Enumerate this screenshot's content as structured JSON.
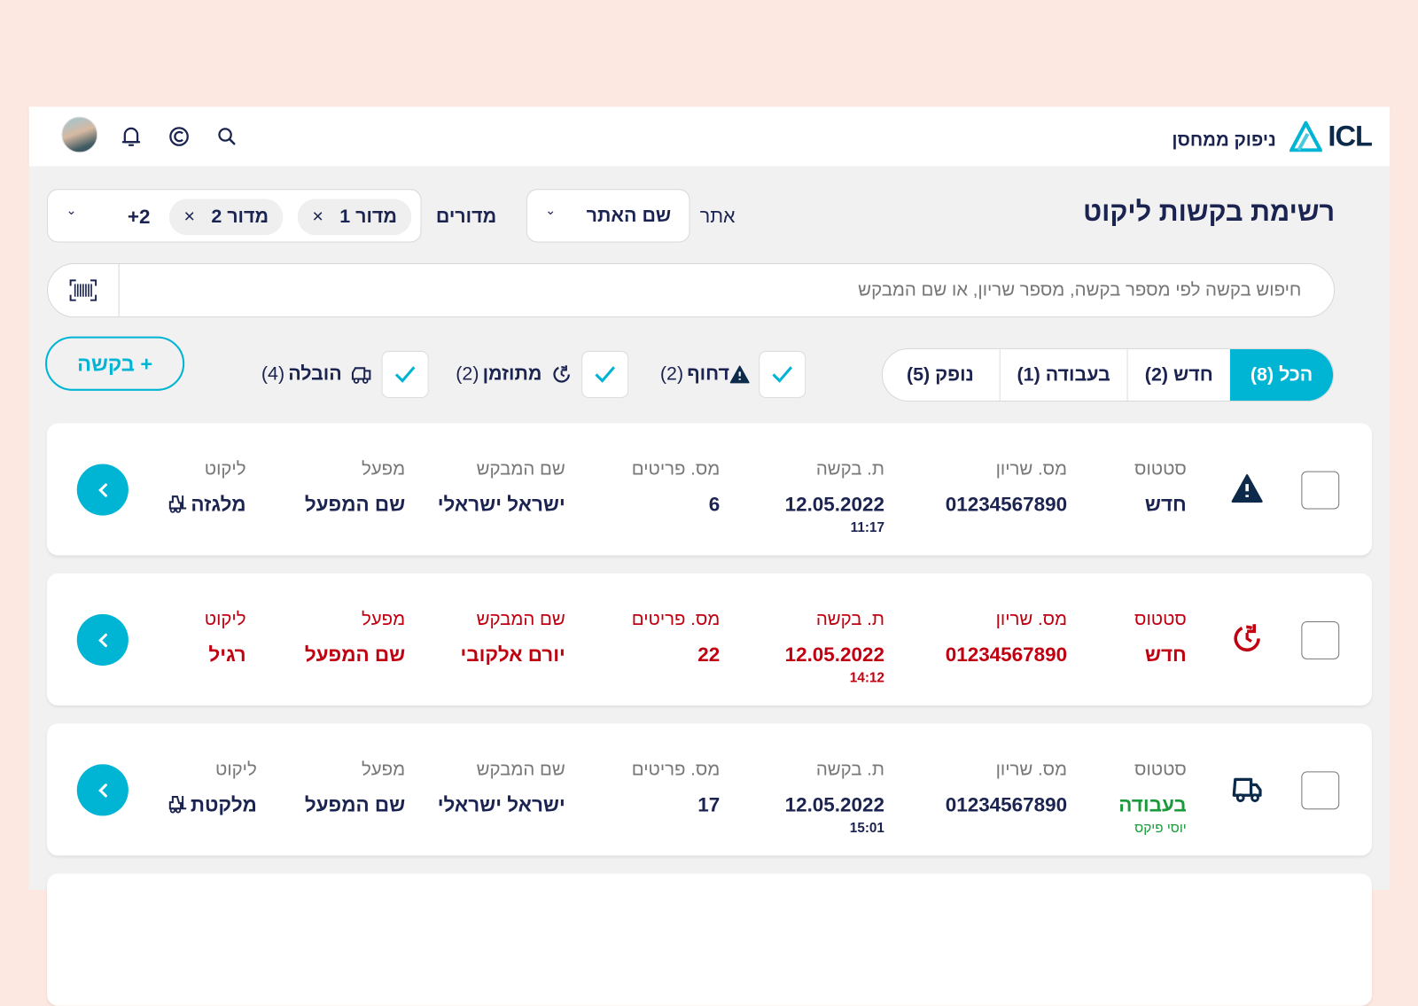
{
  "header": {
    "logo_text": "ICL",
    "app_title": "ניפוק ממחסן"
  },
  "page": {
    "title": "רשימת בקשות ליקוט"
  },
  "filters": {
    "site_label": "אתר",
    "site_value": "שם האתר",
    "regions_label": "מדורים",
    "region_chips": [
      "מדור 1",
      "מדור 2"
    ],
    "regions_more": "+2",
    "chip_remove": "×",
    "search_placeholder": "חיפוש בקשה לפי מספר בקשה, מספר שריון, או שם המבקש"
  },
  "tabs": [
    {
      "label": "הכל (8)",
      "active": true
    },
    {
      "label": "חדש (2)"
    },
    {
      "label": "בעבודה (1)"
    },
    {
      "label": "נופק (5)"
    }
  ],
  "type_filters": [
    {
      "label": "דחוף",
      "count": "(2)",
      "icon": "warning-icon",
      "checked": true
    },
    {
      "label": "מתוזמן",
      "count": "(2)",
      "icon": "scheduled-icon",
      "checked": true
    },
    {
      "label": "הובלה",
      "count": "(4)",
      "icon": "truck-icon",
      "checked": true
    }
  ],
  "add_button": "+ בקשה",
  "columns": {
    "status": "סטטוס",
    "serial": "מס. שריון",
    "date": "ת. בקשה",
    "items": "מס. פריטים",
    "requester": "שם המבקש",
    "factory": "מפעל",
    "picking": "ליקוט"
  },
  "rows": [
    {
      "icon": "warning-icon",
      "status": "חדש",
      "status_sub": "",
      "serial": "01234567890",
      "date": "12.05.2022",
      "time": "11:17",
      "items": "6",
      "requester": "ישראל ישראלי",
      "factory": "שם המפעל",
      "picking": "מלגזה",
      "picking_icon": "forklift-icon",
      "tone": "normal"
    },
    {
      "icon": "scheduled-icon",
      "status": "חדש",
      "status_sub": "",
      "serial": "01234567890",
      "date": "12.05.2022",
      "time": "14:12",
      "items": "22",
      "requester": "יורם אלקובי",
      "factory": "שם המפעל",
      "picking": "רגיל",
      "picking_icon": "",
      "tone": "red"
    },
    {
      "icon": "truck-icon",
      "status": "בעבודה",
      "status_sub": "יוסי פיקס",
      "serial": "01234567890",
      "date": "12.05.2022",
      "time": "15:01",
      "items": "17",
      "requester": "ישראל ישראלי",
      "factory": "שם המפעל",
      "picking": "מלקטת",
      "picking_icon": "forklift-icon",
      "tone": "normal"
    }
  ],
  "colors": {
    "accent": "#00b4d4",
    "urgent_red": "#c00010",
    "in_progress_green": "#1a9a3a",
    "navy": "#1b2350",
    "page_bg": "#fde8e1"
  }
}
